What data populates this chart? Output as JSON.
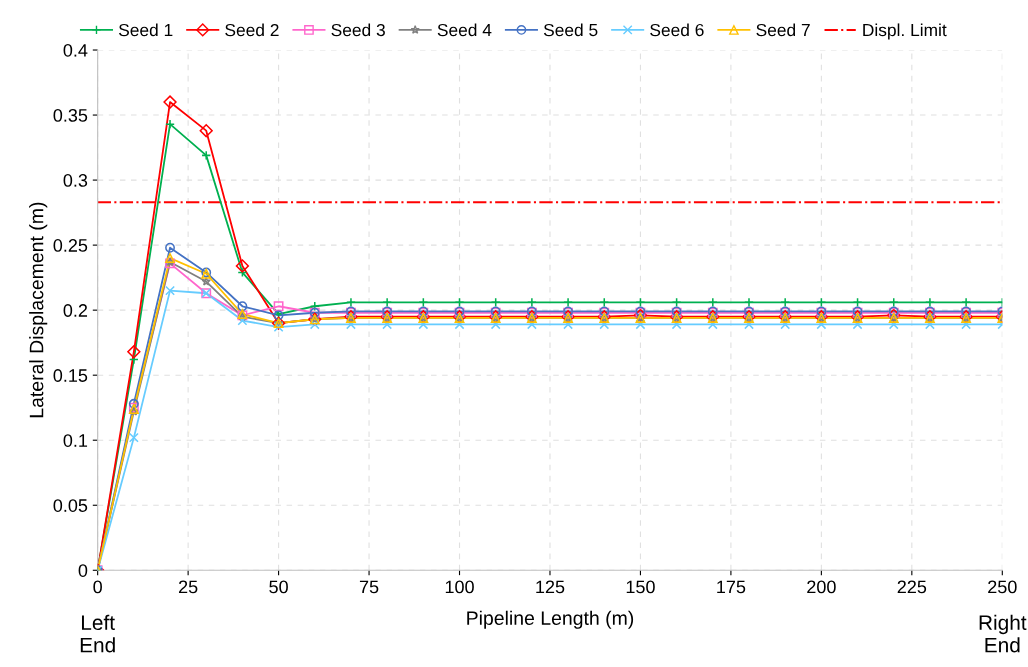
{
  "chart_data": {
    "type": "line",
    "xlabel": "Pipeline Length (m)",
    "ylabel": "Lateral Displacement (m)",
    "x": [
      0,
      10,
      20,
      30,
      40,
      50,
      60,
      70,
      80,
      90,
      100,
      110,
      120,
      130,
      140,
      150,
      160,
      170,
      180,
      190,
      200,
      210,
      220,
      230,
      240,
      250
    ],
    "xlim": [
      0,
      250
    ],
    "xticks": [
      0,
      25,
      50,
      75,
      100,
      125,
      150,
      175,
      200,
      225,
      250
    ],
    "ylim": [
      0,
      0.4
    ],
    "yticks": [
      0,
      {
        "value": 0.05,
        "label": "0.05"
      },
      {
        "value": 0.1,
        "label": "0.1"
      },
      {
        "value": 0.15,
        "label": "0.15"
      },
      {
        "value": 0.2,
        "label": "0.2"
      },
      {
        "value": 0.25,
        "label": "0.25"
      },
      {
        "value": 0.3,
        "label": "0.3"
      },
      {
        "value": 0.35,
        "label": "0.35"
      },
      {
        "value": 0.4,
        "label": "0.4"
      }
    ],
    "grid": true,
    "legend": "top",
    "line_style": "solid",
    "series": [
      {
        "name": "Seed 1",
        "color": "#00b050",
        "marker": "plus",
        "values": [
          0,
          0.162,
          0.343,
          0.319,
          0.229,
          0.197,
          0.203,
          0.206,
          0.206,
          0.206,
          0.206,
          0.206,
          0.206,
          0.206,
          0.206,
          0.206,
          0.206,
          0.206,
          0.206,
          0.206,
          0.206,
          0.206,
          0.206,
          0.206,
          0.206,
          0.206
        ]
      },
      {
        "name": "Seed 2",
        "color": "#ff0000",
        "marker": "diamond",
        "values": [
          0,
          0.168,
          0.36,
          0.338,
          0.234,
          0.19,
          0.193,
          0.195,
          0.195,
          0.195,
          0.195,
          0.195,
          0.195,
          0.195,
          0.195,
          0.196,
          0.195,
          0.195,
          0.195,
          0.195,
          0.195,
          0.195,
          0.196,
          0.195,
          0.195,
          0.195
        ]
      },
      {
        "name": "Seed 3",
        "color": "#ff66cc",
        "marker": "square",
        "values": [
          0,
          0.125,
          0.236,
          0.213,
          0.196,
          0.203,
          0.198,
          0.198,
          0.198,
          0.198,
          0.198,
          0.198,
          0.198,
          0.198,
          0.198,
          0.198,
          0.198,
          0.198,
          0.198,
          0.198,
          0.198,
          0.198,
          0.198,
          0.198,
          0.198,
          0.198
        ]
      },
      {
        "name": "Seed 4",
        "color": "#808080",
        "marker": "star",
        "values": [
          0,
          0.122,
          0.237,
          0.222,
          0.195,
          0.19,
          0.193,
          0.194,
          0.194,
          0.194,
          0.194,
          0.194,
          0.194,
          0.194,
          0.194,
          0.194,
          0.194,
          0.194,
          0.194,
          0.194,
          0.194,
          0.194,
          0.194,
          0.194,
          0.194,
          0.194
        ]
      },
      {
        "name": "Seed 5",
        "color": "#4472c4",
        "marker": "circle",
        "values": [
          0,
          0.128,
          0.248,
          0.229,
          0.203,
          0.196,
          0.198,
          0.199,
          0.199,
          0.199,
          0.199,
          0.199,
          0.199,
          0.199,
          0.199,
          0.199,
          0.199,
          0.199,
          0.199,
          0.199,
          0.199,
          0.199,
          0.199,
          0.199,
          0.199,
          0.199
        ]
      },
      {
        "name": "Seed 6",
        "color": "#66ccff",
        "marker": "cross",
        "values": [
          0,
          0.102,
          0.215,
          0.213,
          0.192,
          0.187,
          0.189,
          0.189,
          0.189,
          0.189,
          0.189,
          0.189,
          0.189,
          0.189,
          0.189,
          0.189,
          0.189,
          0.189,
          0.189,
          0.189,
          0.189,
          0.189,
          0.189,
          0.189,
          0.189,
          0.189
        ]
      },
      {
        "name": "Seed 7",
        "color": "#ffc000",
        "marker": "triangle",
        "values": [
          0,
          0.124,
          0.24,
          0.228,
          0.197,
          0.19,
          0.193,
          0.194,
          0.194,
          0.194,
          0.194,
          0.194,
          0.194,
          0.194,
          0.194,
          0.194,
          0.194,
          0.194,
          0.194,
          0.194,
          0.194,
          0.194,
          0.194,
          0.194,
          0.194,
          0.194
        ]
      }
    ],
    "ref_lines": [
      {
        "axis": "y",
        "value": 0.283,
        "label": "Displ. Limit",
        "color": "#ff0000",
        "line_style": "dashdot"
      }
    ],
    "annotations": [
      "Left\nEnd",
      "Right\nEnd"
    ]
  }
}
